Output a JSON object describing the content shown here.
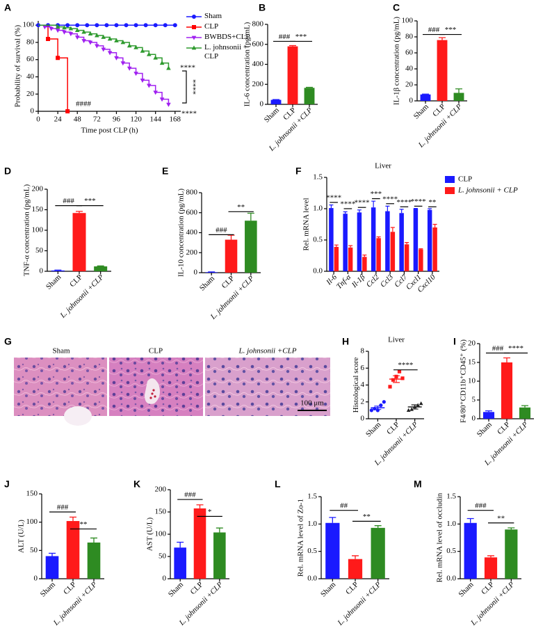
{
  "chart_data": [
    {
      "panel": "A",
      "type": "survival",
      "xlabel": "Time post CLP (h)",
      "ylabel": "Probability of survival (%)",
      "xlim": [
        0,
        175
      ],
      "xticks": [
        0,
        24,
        48,
        72,
        96,
        120,
        144,
        168
      ],
      "ylim": [
        0,
        105
      ],
      "yticks": [
        0,
        20,
        40,
        60,
        80,
        100
      ],
      "series": [
        {
          "name": "Sham",
          "color": "#1a1aff",
          "marker": "circle",
          "x": [
            0,
            12,
            24,
            36,
            48,
            60,
            72,
            84,
            96,
            108,
            120,
            132,
            144,
            156,
            168
          ],
          "values": [
            100,
            100,
            100,
            100,
            100,
            100,
            100,
            100,
            100,
            100,
            100,
            100,
            100,
            100,
            100
          ]
        },
        {
          "name": "CLP",
          "color": "#ff0000",
          "marker": "square",
          "x": [
            0,
            12,
            24,
            36
          ],
          "values": [
            100,
            84,
            62,
            0
          ]
        },
        {
          "name": "BWBDS+CLP",
          "color": "#a020f0",
          "marker": "tri-down",
          "x": [
            0,
            8,
            16,
            24,
            32,
            40,
            48,
            56,
            64,
            72,
            80,
            88,
            96,
            104,
            112,
            120,
            128,
            136,
            144,
            152,
            160
          ],
          "values": [
            100,
            98,
            96,
            94,
            92,
            90,
            86,
            82,
            80,
            76,
            72,
            68,
            62,
            56,
            50,
            44,
            36,
            30,
            22,
            14,
            8
          ]
        },
        {
          "name": "L. johnsonii + CLP",
          "color": "#2e9a2e",
          "marker": "tri-up",
          "x": [
            0,
            24,
            32,
            40,
            48,
            56,
            64,
            72,
            80,
            88,
            96,
            104,
            112,
            120,
            128,
            136,
            144,
            152,
            160
          ],
          "values": [
            100,
            98,
            97,
            96,
            94,
            92,
            90,
            88,
            86,
            84,
            82,
            80,
            76,
            74,
            70,
            66,
            62,
            56,
            50
          ]
        }
      ],
      "annotations": [
        "####",
        "****",
        "****",
        "****"
      ]
    },
    {
      "panel": "B",
      "type": "bar",
      "ylabel": "IL-6 concentration (pg/mL)",
      "categories": [
        "Sham",
        "CLP",
        "L. johnsonii +CLP"
      ],
      "values": [
        45,
        580,
        165
      ],
      "errors": [
        3,
        8,
        5
      ],
      "colors": [
        "#1a1aff",
        "#ff1a1a",
        "#2e8b22"
      ],
      "ylim": [
        0,
        800
      ],
      "yticks": [
        0,
        200,
        400,
        600,
        800
      ],
      "annotations": [
        "###",
        "***"
      ]
    },
    {
      "panel": "C",
      "type": "bar",
      "ylabel": "IL-1β concentration (pg/mL)",
      "categories": [
        "Sham",
        "CLP",
        "L. johnsonii +CLP"
      ],
      "values": [
        8,
        76,
        10
      ],
      "errors": [
        0.5,
        3,
        5
      ],
      "colors": [
        "#1a1aff",
        "#ff1a1a",
        "#2e8b22"
      ],
      "ylim": [
        0,
        100
      ],
      "yticks": [
        0,
        20,
        40,
        60,
        80,
        100
      ],
      "annotations": [
        "###",
        "***"
      ]
    },
    {
      "panel": "D",
      "type": "bar",
      "ylabel": "TNF-α concentration (pg/mL)",
      "categories": [
        "Sham",
        "CLP",
        "L. johnsonii +CLP"
      ],
      "values": [
        2,
        142,
        12
      ],
      "errors": [
        1,
        4,
        1
      ],
      "colors": [
        "#1a1aff",
        "#ff1a1a",
        "#2e8b22"
      ],
      "ylim": [
        0,
        200
      ],
      "yticks": [
        0,
        50,
        100,
        150,
        200
      ],
      "annotations": [
        "###",
        "***"
      ]
    },
    {
      "panel": "E",
      "type": "bar",
      "ylabel": "IL-10 concentration (pg/mL)",
      "categories": [
        "Sham",
        "CLP",
        "L. johnsonii +CLP"
      ],
      "values": [
        5,
        330,
        520
      ],
      "errors": [
        3,
        45,
        75
      ],
      "colors": [
        "#1a1aff",
        "#ff1a1a",
        "#2e8b22"
      ],
      "ylim": [
        0,
        800
      ],
      "yticks": [
        0,
        200,
        400,
        600,
        800
      ],
      "annotations": [
        "###",
        "**"
      ]
    },
    {
      "panel": "F",
      "type": "grouped-bar",
      "title": "Liver",
      "ylabel": "Rel. mRNA level",
      "categories": [
        "Il-6",
        "Tnf-α",
        "Il-1β",
        "Ccl2",
        "Ccl3",
        "Ccl7",
        "Cxcl1",
        "Cxcl10"
      ],
      "series": [
        {
          "name": "CLP",
          "color": "#1a1aff",
          "values": [
            1.01,
            0.92,
            0.94,
            1.02,
            0.96,
            0.93,
            1.0,
            0.98
          ],
          "errors": [
            0.05,
            0.03,
            0.04,
            0.1,
            0.08,
            0.06,
            0.005,
            0.02
          ]
        },
        {
          "name": "L. johnsonii + CLP",
          "color": "#ff1a1a",
          "values": [
            0.39,
            0.38,
            0.23,
            0.53,
            0.63,
            0.43,
            0.35,
            0.7
          ],
          "errors": [
            0.03,
            0.03,
            0.03,
            0.02,
            0.07,
            0.03,
            0.01,
            0.05
          ]
        }
      ],
      "ylim": [
        0,
        1.5
      ],
      "yticks": [
        {
          "value": 0,
          "label": "0.0"
        },
        0.5,
        {
          "value": 1,
          "label": "1.0"
        },
        1.5
      ],
      "annotations": [
        "****",
        "****",
        "****",
        "***",
        "****",
        "****",
        "****",
        "**"
      ],
      "legend": "right"
    },
    {
      "panel": "H",
      "type": "dotplot",
      "title": "Liver",
      "ylabel": "Histological score",
      "categories": [
        "Sham",
        "CLP",
        "L. johnsonii +CLP"
      ],
      "groups": [
        {
          "points": [
            1.0,
            1.2,
            1.0,
            1.6,
            2.0
          ],
          "mean": 1.3,
          "sem": 0.2,
          "color": "#1a1aff",
          "marker": "circle"
        },
        {
          "points": [
            3.8,
            4.6,
            5.0,
            5.6,
            4.8
          ],
          "mean": 4.7,
          "sem": 0.4,
          "color": "#ff1a1a",
          "marker": "square"
        },
        {
          "points": [
            1.0,
            1.1,
            1.4,
            1.6,
            1.8
          ],
          "mean": 1.4,
          "sem": 0.25,
          "color": "#222222",
          "marker": "tri-up"
        }
      ],
      "ylim": [
        0,
        8
      ],
      "yticks": [
        0,
        2,
        4,
        6,
        8
      ],
      "annotations": [
        "****"
      ]
    },
    {
      "panel": "I",
      "type": "bar",
      "ylabel": "F4/80⁺CD11b⁺CD45⁺ (%)",
      "categories": [
        "Sham",
        "CLP",
        "L. johnsonii +CLP"
      ],
      "values": [
        1.8,
        15,
        3
      ],
      "errors": [
        0.3,
        1.2,
        0.5
      ],
      "colors": [
        "#1a1aff",
        "#ff1a1a",
        "#2e8b22"
      ],
      "ylim": [
        0,
        20
      ],
      "yticks": [
        0,
        5,
        10,
        15,
        20
      ],
      "annotations": [
        "###",
        "****"
      ]
    },
    {
      "panel": "J",
      "type": "bar",
      "ylabel": "ALT (U/L)",
      "categories": [
        "Sham",
        "CLP",
        "L. johnsonii +CLP"
      ],
      "values": [
        40,
        102,
        64
      ],
      "errors": [
        5,
        7,
        8
      ],
      "colors": [
        "#1a1aff",
        "#ff1a1a",
        "#2e8b22"
      ],
      "ylim": [
        0,
        150
      ],
      "yticks": [
        0,
        50,
        100,
        150
      ],
      "annotations": [
        "###",
        "**"
      ]
    },
    {
      "panel": "K",
      "type": "bar",
      "ylabel": "AST (U/L)",
      "categories": [
        "Sham",
        "CLP",
        "L. johnsonii +CLP"
      ],
      "values": [
        70,
        158,
        104
      ],
      "errors": [
        12,
        8,
        10
      ],
      "colors": [
        "#1a1aff",
        "#ff1a1a",
        "#2e8b22"
      ],
      "ylim": [
        0,
        200
      ],
      "yticks": [
        0,
        50,
        100,
        150,
        200
      ],
      "annotations": [
        "###",
        "*"
      ]
    },
    {
      "panel": "L",
      "type": "bar",
      "ylabel": "Rel. mRNA level of Zo-1",
      "categories": [
        "Sham",
        "CLP",
        "L. johnsonii +CLP"
      ],
      "values": [
        1.02,
        0.36,
        0.93
      ],
      "errors": [
        0.1,
        0.06,
        0.04
      ],
      "colors": [
        "#1a1aff",
        "#ff1a1a",
        "#2e8b22"
      ],
      "ylim": [
        0,
        1.5
      ],
      "yticks": [
        {
          "value": 0,
          "label": "0.0"
        },
        0.5,
        {
          "value": 1,
          "label": "1.0"
        },
        1.5
      ],
      "annotations": [
        "##",
        "**"
      ]
    },
    {
      "panel": "M",
      "type": "bar",
      "ylabel": "Rel. mRNA level of occludin",
      "categories": [
        "Sham",
        "CLP",
        "L. johnsonii +CLP"
      ],
      "values": [
        1.02,
        0.39,
        0.9
      ],
      "errors": [
        0.08,
        0.03,
        0.03
      ],
      "colors": [
        "#1a1aff",
        "#ff1a1a",
        "#2e8b22"
      ],
      "ylim": [
        0,
        1.5
      ],
      "yticks": [
        {
          "value": 0,
          "label": "0.0"
        },
        0.5,
        {
          "value": 1,
          "label": "1.0"
        },
        1.5
      ],
      "annotations": [
        "###",
        "**"
      ]
    }
  ],
  "histology": {
    "panel": "G",
    "labels": [
      "Sham",
      "CLP",
      "L. johnsonii +CLP"
    ],
    "scale_bar": "100 μm"
  }
}
